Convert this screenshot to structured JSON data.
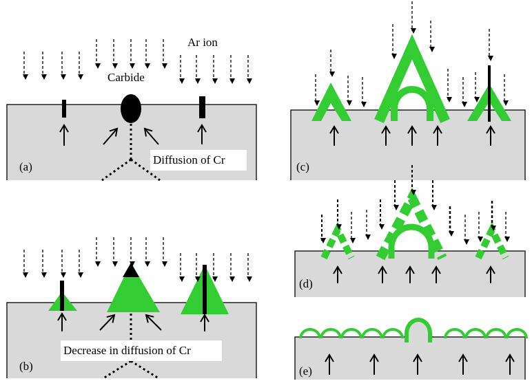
{
  "labels": {
    "ar_ion": "Ar ion",
    "carbide": "Carbide",
    "diffusion": "Diffusion of Cr",
    "decrease": "Decrease in diffusion of Cr"
  },
  "panels": [
    "(a)",
    "(b)",
    "(c)",
    "(d)",
    "(e)"
  ]
}
